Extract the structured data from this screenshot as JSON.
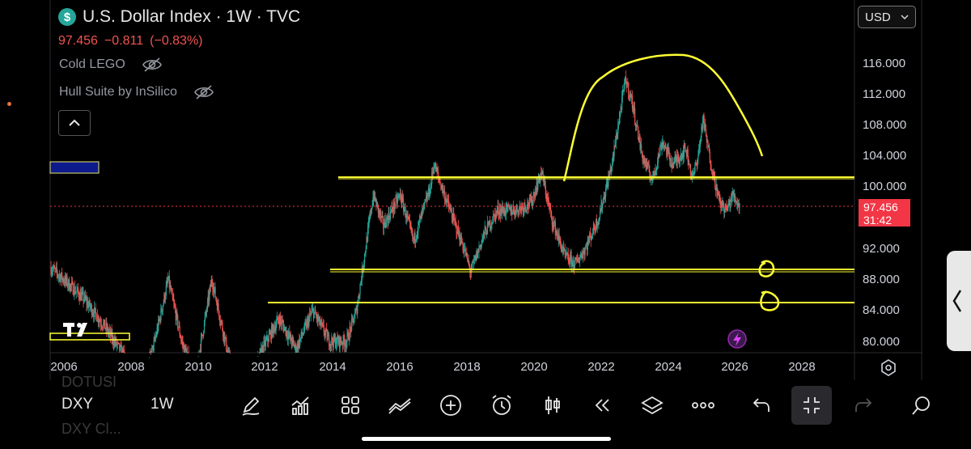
{
  "header": {
    "title": "U.S. Dollar Index · 1W · TVC",
    "currency_icon": "dollar-icon",
    "last_price": "97.456",
    "change": "−0.811",
    "change_pct": "(−0.83%)",
    "indicators": [
      {
        "label": "Cold LEGO",
        "icon": "eye-off-icon"
      },
      {
        "label": "Hull Suite by InSilico",
        "icon": "eye-off-icon"
      }
    ],
    "collapse_icon": "chevron-up-icon"
  },
  "currency_select": {
    "value": "USD",
    "icon": "chevron-down-icon"
  },
  "price_axis": {
    "ticks": [
      "116.000",
      "112.000",
      "108.000",
      "104.000",
      "100.000",
      "92.000",
      "88.000",
      "84.000",
      "80.000"
    ],
    "current_price": "97.456",
    "countdown": "31:42"
  },
  "time_axis": {
    "ticks": [
      "2006",
      "2008",
      "2010",
      "2012",
      "2014",
      "2016",
      "2018",
      "2020",
      "2022",
      "2024",
      "2026",
      "2028"
    ]
  },
  "toolbar": {
    "symbol": "DXY",
    "interval": "1W",
    "tools": [
      {
        "name": "draw-tool",
        "icon": "pen-icon"
      },
      {
        "name": "indicators-tool",
        "icon": "indicator-chart-icon"
      },
      {
        "name": "templates-tool",
        "icon": "grid-icon"
      },
      {
        "name": "compare-tool",
        "icon": "compare-icon"
      },
      {
        "name": "add-tool",
        "icon": "plus-circle-icon"
      },
      {
        "name": "alert-tool",
        "icon": "alarm-icon"
      },
      {
        "name": "chart-type-tool",
        "icon": "candles-icon"
      },
      {
        "name": "replay-tool",
        "icon": "rewind-icon"
      },
      {
        "name": "layers-tool",
        "icon": "layers-icon"
      },
      {
        "name": "more-tool",
        "icon": "ellipsis-icon"
      },
      {
        "name": "undo-tool",
        "icon": "undo-icon"
      },
      {
        "name": "fullscreen-exit-tool",
        "icon": "minimize-icon"
      },
      {
        "name": "redo-tool",
        "icon": "redo-icon"
      }
    ]
  },
  "ghost_labels": {
    "top": "DOTUSI",
    "bottom": "DXY Cl..."
  },
  "colors": {
    "up": "#26a69a",
    "down": "#ef5350",
    "annotation": "#ffff33",
    "price_tag": "#f23645",
    "background": "#000000"
  },
  "chart_data": {
    "type": "candlestick",
    "interval": "1W",
    "x_range": [
      "2005-07",
      "2028-12"
    ],
    "ylim": [
      79,
      120
    ],
    "current_price": 97.456,
    "annotations": [
      {
        "type": "horizontal_line",
        "value": 101.2
      },
      {
        "type": "horizontal_line",
        "value": 89.2
      },
      {
        "type": "horizontal_line",
        "value": 85.1
      },
      {
        "type": "freehand_arc",
        "description": "yellow hand-drawn dome above 2021–2026 price action"
      },
      {
        "type": "freehand_circle",
        "value": 89.2
      },
      {
        "type": "freehand_circle",
        "value": 85.1
      }
    ],
    "approx_path": [
      [
        2005.5,
        90
      ],
      [
        2006.0,
        88
      ],
      [
        2006.6,
        85.5
      ],
      [
        2007.2,
        82
      ],
      [
        2007.8,
        78
      ],
      [
        2008.2,
        72
      ],
      [
        2008.7,
        80
      ],
      [
        2009.1,
        88
      ],
      [
        2009.5,
        80
      ],
      [
        2009.9,
        75.5
      ],
      [
        2010.4,
        88
      ],
      [
        2010.9,
        78
      ],
      [
        2011.4,
        73
      ],
      [
        2011.9,
        79
      ],
      [
        2012.4,
        83
      ],
      [
        2012.9,
        79
      ],
      [
        2013.4,
        84
      ],
      [
        2013.9,
        80
      ],
      [
        2014.4,
        80
      ],
      [
        2014.7,
        84
      ],
      [
        2015.2,
        99
      ],
      [
        2015.5,
        95
      ],
      [
        2016.0,
        99
      ],
      [
        2016.4,
        93
      ],
      [
        2016.9,
        100
      ],
      [
        2017.0,
        103
      ],
      [
        2017.4,
        98
      ],
      [
        2017.9,
        92
      ],
      [
        2018.1,
        89
      ],
      [
        2018.5,
        94
      ],
      [
        2018.9,
        97
      ],
      [
        2019.4,
        97
      ],
      [
        2019.9,
        98
      ],
      [
        2020.2,
        102
      ],
      [
        2020.5,
        96
      ],
      [
        2020.9,
        91
      ],
      [
        2021.2,
        90
      ],
      [
        2021.5,
        92
      ],
      [
        2021.9,
        96
      ],
      [
        2022.3,
        103
      ],
      [
        2022.7,
        114
      ],
      [
        2022.9,
        111
      ],
      [
        2023.2,
        104
      ],
      [
        2023.5,
        101
      ],
      [
        2023.8,
        106
      ],
      [
        2024.1,
        103
      ],
      [
        2024.5,
        105
      ],
      [
        2024.7,
        101
      ],
      [
        2024.9,
        105
      ],
      [
        2025.0,
        109
      ],
      [
        2025.2,
        104
      ],
      [
        2025.5,
        98
      ],
      [
        2025.7,
        97
      ],
      [
        2025.9,
        99
      ],
      [
        2026.1,
        97.5
      ]
    ]
  }
}
